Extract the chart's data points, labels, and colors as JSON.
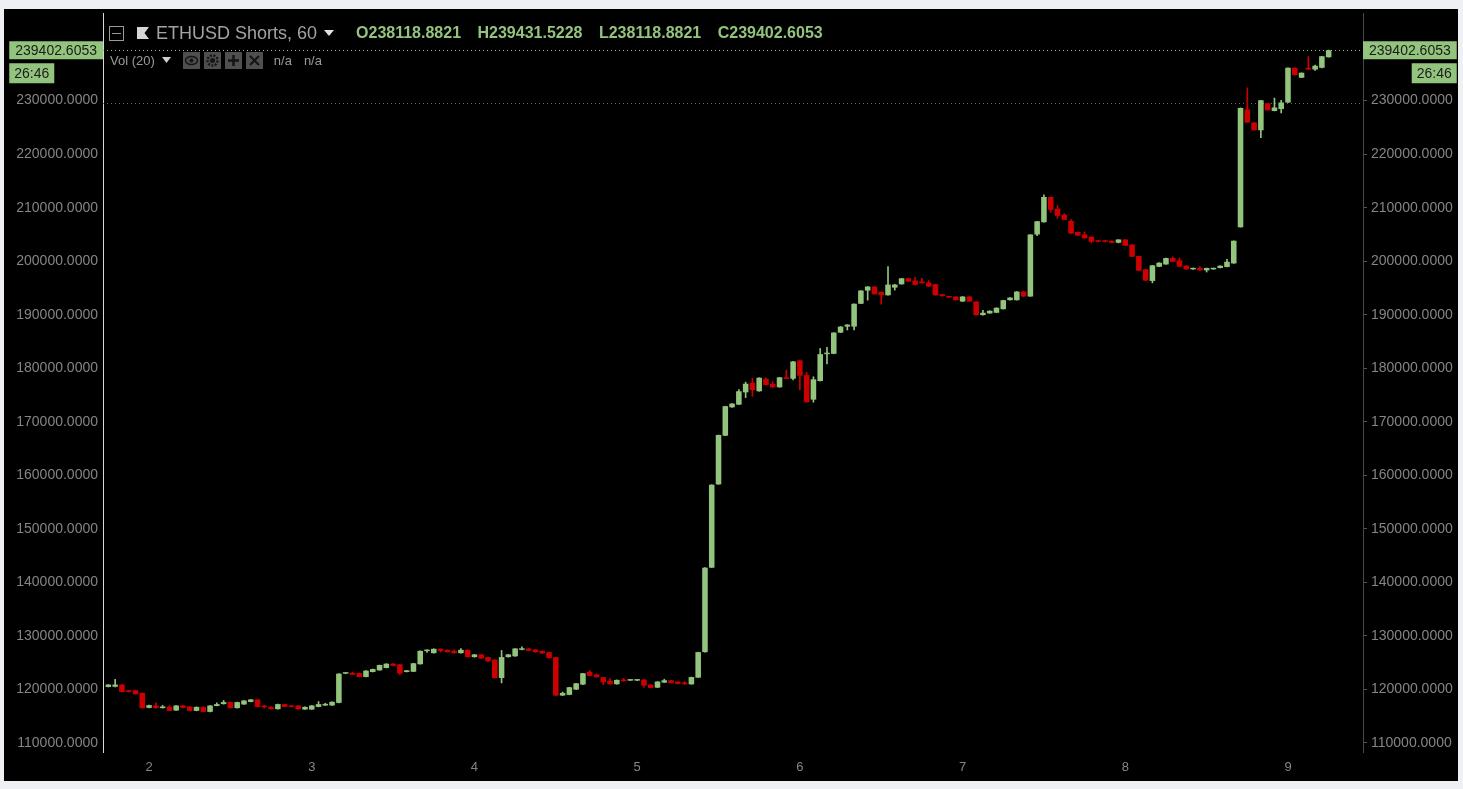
{
  "chart_data": {
    "type": "candlestick",
    "title": "ETHUSD Shorts, 60",
    "subtitle": "O238118.8821 H239431.5228 L238118.8821 C239402.6053",
    "annotations": [
      "Vol (20)",
      "n/a",
      "n/a",
      "26:46"
    ],
    "x": [
      1.75,
      1.7917,
      1.8333,
      1.875,
      1.9167,
      1.9583,
      2,
      2.0417,
      2.0833,
      2.125,
      2.1667,
      2.2083,
      2.25,
      2.2917,
      2.3333,
      2.375,
      2.4167,
      2.4583,
      2.5,
      2.5417,
      2.5833,
      2.625,
      2.6667,
      2.7083,
      2.75,
      2.7917,
      2.8333,
      2.875,
      2.9167,
      2.9583,
      3,
      3.0417,
      3.0833,
      3.125,
      3.1667,
      3.2083,
      3.25,
      3.2917,
      3.3333,
      3.375,
      3.4167,
      3.4583,
      3.5,
      3.5417,
      3.5833,
      3.625,
      3.6667,
      3.7083,
      3.75,
      3.7917,
      3.8333,
      3.875,
      3.9167,
      3.9583,
      4,
      4.0417,
      4.0833,
      4.125,
      4.1667,
      4.2083,
      4.25,
      4.2917,
      4.3333,
      4.375,
      4.4167,
      4.4583,
      4.5,
      4.5417,
      4.5833,
      4.625,
      4.6667,
      4.7083,
      4.75,
      4.7917,
      4.8333,
      4.875,
      4.9167,
      4.9583,
      5,
      5.0417,
      5.0833,
      5.125,
      5.1667,
      5.2083,
      5.25,
      5.2917,
      5.3333,
      5.375,
      5.4167,
      5.4583,
      5.5,
      5.5417,
      5.5833,
      5.625,
      5.6667,
      5.7083,
      5.75,
      5.7917,
      5.8333,
      5.875,
      5.9167,
      5.9583,
      6,
      6.0417,
      6.0833,
      6.125,
      6.1667,
      6.2083,
      6.25,
      6.2917,
      6.3333,
      6.375,
      6.4167,
      6.4583,
      6.5,
      6.5417,
      6.5833,
      6.625,
      6.6667,
      6.7083,
      6.75,
      6.7917,
      6.8333,
      6.875,
      6.9167,
      6.9583,
      7,
      7.0417,
      7.0833,
      7.125,
      7.1667,
      7.2083,
      7.25,
      7.2917,
      7.3333,
      7.375,
      7.4167,
      7.4583,
      7.5,
      7.5417,
      7.5833,
      7.625,
      7.6667,
      7.7083,
      7.75,
      7.7917,
      7.8333,
      7.875,
      7.9167,
      7.9583,
      8,
      8.0417,
      8.0833,
      8.125,
      8.1667,
      8.2083,
      8.25,
      8.2917,
      8.3333,
      8.375,
      8.4167,
      8.4583,
      8.5,
      8.5417,
      8.5833,
      8.625,
      8.6667,
      8.7083,
      8.75,
      8.7917,
      8.8333,
      8.875,
      8.9167,
      8.9583,
      9,
      9.0417,
      9.0833,
      9.125,
      9.1667,
      9.2083,
      9.25
    ],
    "ohlc": [
      [
        120450,
        120900,
        120450,
        120900
      ],
      [
        120500,
        121880,
        120450,
        120900
      ],
      [
        120900,
        120900,
        119520,
        119520
      ],
      [
        119840,
        119840,
        119520,
        119520
      ],
      [
        119840,
        119840,
        119100,
        119100
      ],
      [
        119340,
        119340,
        116490,
        116490
      ],
      [
        116550,
        117050,
        116550,
        117050
      ],
      [
        116990,
        117480,
        116490,
        116490
      ],
      [
        116500,
        117000,
        116500,
        116800
      ],
      [
        116730,
        117000,
        115990,
        115990
      ],
      [
        116050,
        116990,
        116050,
        116990
      ],
      [
        116990,
        116990,
        116550,
        116550
      ],
      [
        116800,
        116800,
        115990,
        115990
      ],
      [
        115990,
        116730,
        115990,
        116730
      ],
      [
        116730,
        116730,
        115800,
        115800
      ],
      [
        115800,
        116990,
        115800,
        116990
      ],
      [
        116900,
        117480,
        116900,
        117240
      ],
      [
        117250,
        117920,
        117250,
        117620
      ],
      [
        117620,
        117620,
        116500,
        116500
      ],
      [
        116500,
        117620,
        116500,
        117620
      ],
      [
        117180,
        117920,
        117180,
        117920
      ],
      [
        117660,
        118110,
        117660,
        118110
      ],
      [
        118110,
        118110,
        116730,
        116730
      ],
      [
        116990,
        116990,
        116500,
        116680
      ],
      [
        116730,
        116730,
        116300,
        116300
      ],
      [
        116300,
        117240,
        116300,
        117240
      ],
      [
        117240,
        117240,
        116730,
        116730
      ],
      [
        116990,
        116990,
        116730,
        116730
      ],
      [
        116990,
        116990,
        116300,
        116300
      ],
      [
        116240,
        116730,
        116240,
        116730
      ],
      [
        116240,
        116990,
        116240,
        116990
      ],
      [
        116730,
        117730,
        116730,
        117240
      ],
      [
        116990,
        117400,
        116990,
        117300
      ],
      [
        116990,
        117680,
        116990,
        117680
      ],
      [
        117480,
        122940,
        117480,
        122940
      ],
      [
        122940,
        123060,
        122940,
        123060
      ],
      [
        123060,
        123240,
        122740,
        122740
      ],
      [
        123060,
        123060,
        122320,
        122320
      ],
      [
        122320,
        123500,
        122320,
        123500
      ],
      [
        123250,
        123800,
        123250,
        123800
      ],
      [
        123560,
        124550,
        123560,
        124550
      ],
      [
        124000,
        124800,
        124000,
        124800
      ],
      [
        124800,
        124800,
        124400,
        124400
      ],
      [
        124670,
        124670,
        122730,
        122980
      ],
      [
        123250,
        123550,
        123250,
        123550
      ],
      [
        123300,
        124880,
        123300,
        124880
      ],
      [
        124700,
        127200,
        124700,
        127200
      ],
      [
        127150,
        127400,
        126900,
        127200
      ],
      [
        126770,
        127580,
        126770,
        127580
      ],
      [
        127580,
        127580,
        126950,
        127200
      ],
      [
        127390,
        127390,
        126960,
        126960
      ],
      [
        127200,
        127390,
        126770,
        126770
      ],
      [
        126770,
        127640,
        126770,
        127390
      ],
      [
        127390,
        127390,
        126030,
        126030
      ],
      [
        126030,
        126530,
        126030,
        126530
      ],
      [
        126530,
        126530,
        125780,
        125780
      ],
      [
        126030,
        126030,
        125160,
        125280
      ],
      [
        125530,
        125530,
        122120,
        122120
      ],
      [
        122120,
        127270,
        121210,
        126030
      ],
      [
        126030,
        126530,
        126030,
        126530
      ],
      [
        126180,
        127640,
        126180,
        127640
      ],
      [
        127390,
        127950,
        127390,
        127640
      ],
      [
        127640,
        127640,
        127210,
        127210
      ],
      [
        127450,
        127450,
        126950,
        126950
      ],
      [
        127200,
        127200,
        126710,
        126710
      ],
      [
        126960,
        126960,
        125840,
        125840
      ],
      [
        126030,
        126030,
        118850,
        118850
      ],
      [
        118850,
        119500,
        118850,
        119340
      ],
      [
        118980,
        120400,
        118980,
        120400
      ],
      [
        119960,
        121140,
        119960,
        121140
      ],
      [
        120900,
        123020,
        120900,
        123020
      ],
      [
        123270,
        123520,
        122520,
        122520
      ],
      [
        122770,
        122900,
        122270,
        122270
      ],
      [
        122270,
        122270,
        120900,
        121330
      ],
      [
        121640,
        122020,
        120960,
        120960
      ],
      [
        120960,
        121770,
        120960,
        121770
      ],
      [
        121830,
        122080,
        121520,
        121520
      ],
      [
        121640,
        121770,
        121640,
        121770
      ],
      [
        121640,
        121770,
        121640,
        121770
      ],
      [
        121830,
        121830,
        120400,
        120710
      ],
      [
        120900,
        120900,
        120270,
        120270
      ],
      [
        120330,
        121460,
        120330,
        121460
      ],
      [
        121270,
        121900,
        121270,
        121700
      ],
      [
        121700,
        121700,
        121200,
        121200
      ],
      [
        121460,
        121460,
        121020,
        121020
      ],
      [
        121270,
        121460,
        120960,
        120960
      ],
      [
        120950,
        122300,
        120950,
        122300
      ],
      [
        122200,
        126960,
        122200,
        126960
      ],
      [
        126960,
        142740,
        126960,
        142740
      ],
      [
        142740,
        158240,
        142740,
        158240
      ],
      [
        158300,
        167530,
        158300,
        167530
      ],
      [
        167400,
        172910,
        167400,
        172910
      ],
      [
        172700,
        173400,
        172700,
        173400
      ],
      [
        173200,
        176000,
        173200,
        175700
      ],
      [
        175500,
        177400,
        174510,
        177110
      ],
      [
        177300,
        178110,
        174770,
        175940
      ],
      [
        175700,
        178230,
        175700,
        178230
      ],
      [
        178040,
        178230,
        176870,
        176870
      ],
      [
        177110,
        177500,
        176440,
        176440
      ],
      [
        176440,
        178300,
        176440,
        178300
      ],
      [
        178300,
        179660,
        178040,
        178040
      ],
      [
        178040,
        181270,
        177800,
        181270
      ],
      [
        181460,
        181460,
        176000,
        178600
      ],
      [
        178730,
        179230,
        173660,
        173660
      ],
      [
        174140,
        178400,
        173650,
        177930
      ],
      [
        177610,
        183690,
        177610,
        182630
      ],
      [
        182630,
        183930,
        180830,
        182800
      ],
      [
        182700,
        186660,
        182700,
        186660
      ],
      [
        186660,
        187780,
        186660,
        187780
      ],
      [
        187780,
        188150,
        187150,
        188150
      ],
      [
        187780,
        192050,
        187150,
        192050
      ],
      [
        192050,
        194520,
        192050,
        194520
      ],
      [
        194520,
        195260,
        192720,
        195260
      ],
      [
        195260,
        195260,
        193830,
        193830
      ],
      [
        194270,
        194270,
        191970,
        193640
      ],
      [
        193640,
        198980,
        193640,
        195630
      ],
      [
        195070,
        195690,
        194600,
        195630
      ],
      [
        195690,
        196800,
        195690,
        196800
      ],
      [
        196800,
        196880,
        196190,
        196190
      ],
      [
        196380,
        196990,
        195580,
        195580
      ],
      [
        196190,
        196800,
        195880,
        195880
      ],
      [
        196000,
        196370,
        195260,
        195260
      ],
      [
        195690,
        195690,
        193640,
        193640
      ],
      [
        193830,
        193830,
        193460,
        193460
      ],
      [
        193460,
        193460,
        193220,
        193220
      ],
      [
        193400,
        193400,
        192720,
        192720
      ],
      [
        192470,
        193400,
        192470,
        193400
      ],
      [
        193400,
        193400,
        192470,
        192470
      ],
      [
        192470,
        192470,
        189930,
        189930
      ],
      [
        189930,
        190800,
        189930,
        190370
      ],
      [
        190250,
        190740,
        190250,
        190740
      ],
      [
        190370,
        191300,
        190370,
        191300
      ],
      [
        191040,
        192720,
        191040,
        192720
      ],
      [
        192720,
        193210,
        192720,
        193210
      ],
      [
        192720,
        194330,
        192720,
        194330
      ],
      [
        194330,
        194330,
        193410,
        193410
      ],
      [
        193410,
        204980,
        193410,
        204980
      ],
      [
        204980,
        207470,
        204790,
        207470
      ],
      [
        207300,
        212410,
        207300,
        211980
      ],
      [
        211980,
        211980,
        209140,
        209620
      ],
      [
        209810,
        210370,
        208010,
        208510
      ],
      [
        208690,
        208900,
        207760,
        207760
      ],
      [
        207520,
        207800,
        205160,
        205160
      ],
      [
        205480,
        205480,
        204790,
        204790
      ],
      [
        204980,
        205480,
        204310,
        204310
      ],
      [
        204550,
        204550,
        203400,
        203620
      ],
      [
        203800,
        203800,
        203620,
        203620
      ],
      [
        203800,
        203800,
        203620,
        203620
      ],
      [
        203800,
        203800,
        203430,
        203430
      ],
      [
        203430,
        204050,
        203430,
        204050
      ],
      [
        204050,
        204050,
        202880,
        202880
      ],
      [
        203120,
        203120,
        200830,
        200830
      ],
      [
        200960,
        200960,
        198230,
        198230
      ],
      [
        198480,
        198480,
        196380,
        196380
      ],
      [
        196320,
        199220,
        195950,
        199220
      ],
      [
        198960,
        199720,
        198960,
        199720
      ],
      [
        199400,
        200590,
        199400,
        200590
      ],
      [
        200590,
        200800,
        199910,
        199910
      ],
      [
        200160,
        200590,
        198980,
        198980
      ],
      [
        199160,
        199160,
        198480,
        198480
      ],
      [
        198480,
        198730,
        198480,
        198730
      ],
      [
        198730,
        198980,
        198290,
        198290
      ],
      [
        198290,
        198730,
        197980,
        198730
      ],
      [
        198480,
        198730,
        198480,
        198730
      ],
      [
        198730,
        199160,
        198730,
        199160
      ],
      [
        198920,
        200330,
        198920,
        199900
      ],
      [
        199590,
        203810,
        199590,
        203810
      ],
      [
        206350,
        228640,
        206350,
        228640
      ],
      [
        228330,
        232410,
        225910,
        225910
      ],
      [
        225910,
        225910,
        224480,
        224480
      ],
      [
        224480,
        230060,
        223070,
        230060
      ],
      [
        229500,
        229500,
        228200,
        228200
      ],
      [
        228080,
        230500,
        228080,
        228700
      ],
      [
        228460,
        230060,
        227715,
        229630
      ],
      [
        229630,
        236130,
        229630,
        236130
      ],
      [
        236130,
        236130,
        234770,
        234770
      ],
      [
        234270,
        235200,
        234270,
        235200
      ],
      [
        236130,
        238230,
        235810,
        235810
      ],
      [
        235810,
        236630,
        235630,
        236500
      ],
      [
        236130,
        238300,
        236130,
        238300
      ],
      [
        238118.8821,
        239431.5228,
        238118.8821,
        239402.6053
      ]
    ],
    "colors": [
      "#93c47d",
      "#93c47d",
      "#cc0000",
      "#cc0000",
      "#cc0000",
      "#cc0000",
      "#93c47d",
      "#cc0000",
      "#93c47d",
      "#cc0000",
      "#93c47d",
      "#cc0000",
      "#cc0000",
      "#93c47d",
      "#cc0000",
      "#93c47d",
      "#93c47d",
      "#93c47d",
      "#cc0000",
      "#93c47d",
      "#93c47d",
      "#93c47d",
      "#cc0000",
      "#cc0000",
      "#cc0000",
      "#93c47d",
      "#cc0000",
      "#cc0000",
      "#cc0000",
      "#93c47d",
      "#93c47d",
      "#93c47d",
      "#93c47d",
      "#93c47d",
      "#93c47d",
      "#93c47d",
      "#cc0000",
      "#cc0000",
      "#93c47d",
      "#93c47d",
      "#93c47d",
      "#93c47d",
      "#cc0000",
      "#cc0000",
      "#93c47d",
      "#93c47d",
      "#93c47d",
      "#93c47d",
      "#93c47d",
      "#cc0000",
      "#cc0000",
      "#cc0000",
      "#93c47d",
      "#cc0000",
      "#93c47d",
      "#cc0000",
      "#cc0000",
      "#cc0000",
      "#93c47d",
      "#93c47d",
      "#93c47d",
      "#93c47d",
      "#cc0000",
      "#cc0000",
      "#cc0000",
      "#cc0000",
      "#cc0000",
      "#93c47d",
      "#93c47d",
      "#93c47d",
      "#93c47d",
      "#cc0000",
      "#cc0000",
      "#cc0000",
      "#cc0000",
      "#93c47d",
      "#cc0000",
      "#93c47d",
      "#93c47d",
      "#cc0000",
      "#cc0000",
      "#93c47d",
      "#93c47d",
      "#cc0000",
      "#cc0000",
      "#cc0000",
      "#93c47d",
      "#93c47d",
      "#93c47d",
      "#93c47d",
      "#93c47d",
      "#93c47d",
      "#93c47d",
      "#93c47d",
      "#93c47d",
      "#cc0000",
      "#93c47d",
      "#cc0000",
      "#cc0000",
      "#93c47d",
      "#cc0000",
      "#93c47d",
      "#cc0000",
      "#cc0000",
      "#93c47d",
      "#93c47d",
      "#93c47d",
      "#93c47d",
      "#93c47d",
      "#93c47d",
      "#93c47d",
      "#93c47d",
      "#93c47d",
      "#cc0000",
      "#cc0000",
      "#93c47d",
      "#93c47d",
      "#93c47d",
      "#cc0000",
      "#cc0000",
      "#cc0000",
      "#cc0000",
      "#cc0000",
      "#cc0000",
      "#cc0000",
      "#cc0000",
      "#93c47d",
      "#cc0000",
      "#cc0000",
      "#93c47d",
      "#93c47d",
      "#93c47d",
      "#93c47d",
      "#93c47d",
      "#93c47d",
      "#cc0000",
      "#93c47d",
      "#93c47d",
      "#93c47d",
      "#cc0000",
      "#cc0000",
      "#cc0000",
      "#cc0000",
      "#cc0000",
      "#cc0000",
      "#cc0000",
      "#cc0000",
      "#cc0000",
      "#cc0000",
      "#93c47d",
      "#cc0000",
      "#cc0000",
      "#cc0000",
      "#cc0000",
      "#93c47d",
      "#93c47d",
      "#93c47d",
      "#cc0000",
      "#cc0000",
      "#cc0000",
      "#93c47d",
      "#cc0000",
      "#93c47d",
      "#93c47d",
      "#93c47d",
      "#93c47d",
      "#93c47d",
      "#93c47d",
      "#cc0000",
      "#cc0000",
      "#93c47d",
      "#cc0000",
      "#93c47d",
      "#93c47d",
      "#93c47d",
      "#cc0000",
      "#93c47d",
      "#cc0000",
      "#93c47d",
      "#93c47d",
      "#93c47d"
    ],
    "xlim": [
      1.717,
      9.461
    ],
    "xticks": [
      2,
      3,
      4,
      5,
      6,
      7,
      8,
      9
    ],
    "ylim": [
      108300,
      246300
    ],
    "yticks": [
      {
        "value": 110000,
        "label": "110000.0000"
      },
      {
        "value": 120000,
        "label": "120000.0000"
      },
      {
        "value": 130000,
        "label": "130000.0000"
      },
      {
        "value": 140000,
        "label": "140000.0000"
      },
      {
        "value": 150000,
        "label": "150000.0000"
      },
      {
        "value": 160000,
        "label": "160000.0000"
      },
      {
        "value": 170000,
        "label": "170000.0000"
      },
      {
        "value": 180000,
        "label": "180000.0000"
      },
      {
        "value": 190000,
        "label": "190000.0000"
      },
      {
        "value": 200000,
        "label": "200000.0000"
      },
      {
        "value": 210000,
        "label": "210000.0000"
      },
      {
        "value": 220000,
        "label": "220000.0000"
      },
      {
        "value": 230000,
        "label": "230000.0000"
      }
    ],
    "y2lim": [
      108300,
      246300
    ],
    "y2ticks": [
      {
        "value": 110000,
        "label": "110000.0000"
      },
      {
        "value": 120000,
        "label": "120000.0000"
      },
      {
        "value": 130000,
        "label": "130000.0000"
      },
      {
        "value": 140000,
        "label": "140000.0000"
      },
      {
        "value": 150000,
        "label": "150000.0000"
      },
      {
        "value": 160000,
        "label": "160000.0000"
      },
      {
        "value": 170000,
        "label": "170000.0000"
      },
      {
        "value": 180000,
        "label": "180000.0000"
      },
      {
        "value": 190000,
        "label": "190000.0000"
      },
      {
        "value": 200000,
        "label": "200000.0000"
      },
      {
        "value": 210000,
        "label": "210000.0000"
      },
      {
        "value": 220000,
        "label": "220000.0000"
      },
      {
        "value": 230000,
        "label": "230000.0000"
      }
    ],
    "ref_lines": [
      {
        "axis": "y",
        "value": 239402.6053,
        "label": "239402.6053",
        "color": "#93c47d",
        "line_style": "dotted"
      },
      {
        "axis": "y",
        "value": 229500,
        "color": "#6a6a6a",
        "line_style": "dotted"
      }
    ]
  }
}
